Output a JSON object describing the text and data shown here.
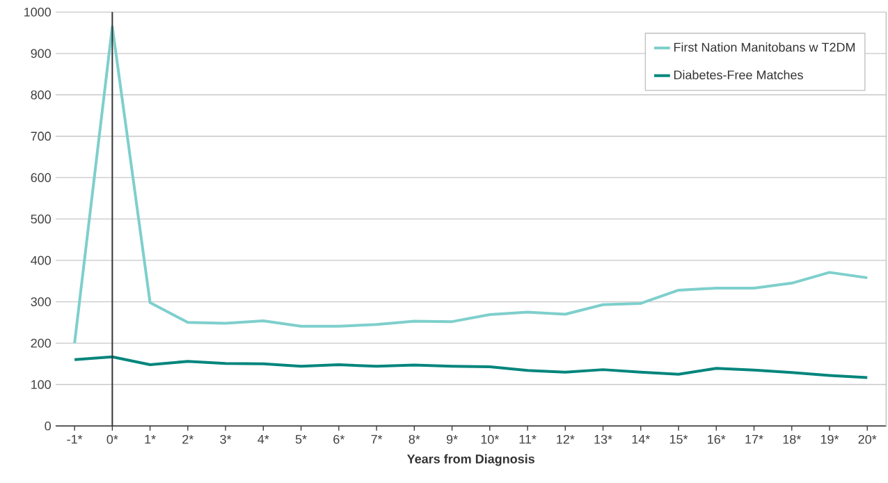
{
  "chart_data": {
    "type": "line",
    "xlabel": "Years from Diagnosis",
    "categories": [
      "-1*",
      "0*",
      "1*",
      "2*",
      "3*",
      "4*",
      "5*",
      "6*",
      "7*",
      "8*",
      "9*",
      "10*",
      "11*",
      "12*",
      "13*",
      "14*",
      "15*",
      "16*",
      "17*",
      "18*",
      "19*",
      "20*"
    ],
    "series": [
      {
        "name": "First Nation Manitobans w T2DM",
        "color": "#7ecfcc",
        "values": [
          200,
          965,
          298,
          250,
          248,
          254,
          241,
          241,
          245,
          253,
          252,
          269,
          275,
          270,
          293,
          296,
          328,
          333,
          333,
          345,
          371,
          358
        ]
      },
      {
        "name": "Diabetes-Free Matches",
        "color": "#00857c",
        "values": [
          160,
          167,
          148,
          156,
          151,
          150,
          144,
          148,
          144,
          147,
          144,
          143,
          134,
          130,
          136,
          130,
          125,
          139,
          135,
          129,
          122,
          117
        ]
      }
    ],
    "ylim": [
      0,
      1000
    ],
    "yticks": [
      0,
      100,
      200,
      300,
      400,
      500,
      600,
      700,
      800,
      900,
      1000
    ],
    "grid": "y",
    "legend": "top right",
    "marker": "none",
    "line_style": "solid",
    "ref_lines": [
      {
        "axis": "x",
        "value": "0*",
        "color": "#333333"
      }
    ]
  }
}
